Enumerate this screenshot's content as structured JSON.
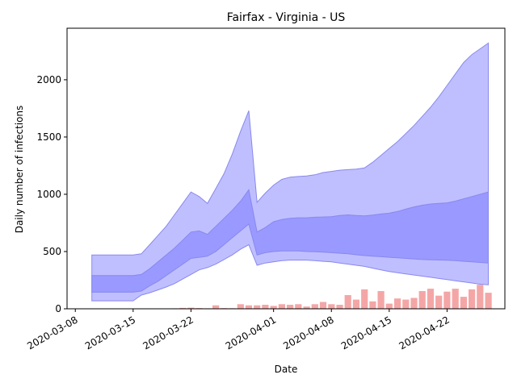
{
  "chart_data": {
    "type": "area",
    "title": "Fairfax - Virginia - US",
    "xlabel": "Date",
    "ylabel": "Daily number of infections",
    "x_type": "date",
    "xlim": [
      "2020-03-07",
      "2020-04-29"
    ],
    "ylim": [
      0,
      2450
    ],
    "x_ticks": [
      "2020-03-08",
      "2020-03-15",
      "2020-03-22",
      "2020-04-01",
      "2020-04-08",
      "2020-04-15",
      "2020-04-22"
    ],
    "y_ticks": [
      0,
      500,
      1000,
      1500,
      2000
    ],
    "grid": false,
    "legend": "none",
    "colors": {
      "outer_band": "#bfbfff",
      "inner_band": "#9999ff",
      "band_edge": "#8888ee",
      "bars": "#f4a6a6"
    },
    "bands": {
      "dates": [
        "2020-03-10",
        "2020-03-15",
        "2020-03-16",
        "2020-03-17",
        "2020-03-18",
        "2020-03-19",
        "2020-03-20",
        "2020-03-21",
        "2020-03-22",
        "2020-03-23",
        "2020-03-24",
        "2020-03-25",
        "2020-03-26",
        "2020-03-27",
        "2020-03-28",
        "2020-03-29",
        "2020-03-30",
        "2020-03-31",
        "2020-04-01",
        "2020-04-02",
        "2020-04-03",
        "2020-04-04",
        "2020-04-05",
        "2020-04-06",
        "2020-04-07",
        "2020-04-08",
        "2020-04-09",
        "2020-04-10",
        "2020-04-11",
        "2020-04-12",
        "2020-04-13",
        "2020-04-14",
        "2020-04-15",
        "2020-04-16",
        "2020-04-17",
        "2020-04-18",
        "2020-04-19",
        "2020-04-20",
        "2020-04-21",
        "2020-04-22",
        "2020-04-23",
        "2020-04-24",
        "2020-04-25",
        "2020-04-26",
        "2020-04-27"
      ],
      "outer_upper": [
        470,
        470,
        480,
        560,
        640,
        720,
        820,
        920,
        1020,
        980,
        920,
        1050,
        1180,
        1350,
        1550,
        1730,
        930,
        1010,
        1080,
        1130,
        1150,
        1155,
        1160,
        1170,
        1190,
        1200,
        1210,
        1215,
        1220,
        1230,
        1280,
        1340,
        1400,
        1460,
        1530,
        1600,
        1680,
        1760,
        1850,
        1950,
        2050,
        2150,
        2220,
        2270,
        2320
      ],
      "inner_upper": [
        290,
        290,
        300,
        350,
        410,
        470,
        530,
        600,
        670,
        680,
        650,
        720,
        790,
        860,
        940,
        1040,
        670,
        710,
        760,
        780,
        790,
        795,
        795,
        800,
        802,
        805,
        815,
        820,
        815,
        812,
        818,
        828,
        835,
        850,
        870,
        890,
        905,
        915,
        920,
        925,
        940,
        960,
        980,
        1000,
        1020
      ],
      "inner_lower": [
        145,
        145,
        155,
        200,
        240,
        290,
        340,
        390,
        440,
        450,
        460,
        500,
        560,
        620,
        680,
        740,
        470,
        490,
        500,
        505,
        505,
        505,
        500,
        498,
        495,
        490,
        485,
        480,
        472,
        465,
        460,
        455,
        450,
        445,
        440,
        435,
        430,
        428,
        426,
        424,
        420,
        415,
        410,
        405,
        400
      ],
      "outer_lower": [
        70,
        70,
        120,
        140,
        165,
        190,
        220,
        260,
        300,
        340,
        360,
        390,
        430,
        470,
        520,
        560,
        380,
        400,
        410,
        420,
        425,
        425,
        425,
        420,
        415,
        410,
        400,
        390,
        380,
        370,
        355,
        340,
        325,
        315,
        305,
        295,
        285,
        275,
        265,
        255,
        245,
        235,
        225,
        215,
        210
      ]
    },
    "observed": {
      "dates": [
        "2020-03-19",
        "2020-03-20",
        "2020-03-21",
        "2020-03-22",
        "2020-03-23",
        "2020-03-24",
        "2020-03-25",
        "2020-03-26",
        "2020-03-27",
        "2020-03-28",
        "2020-03-29",
        "2020-03-30",
        "2020-03-31",
        "2020-04-01",
        "2020-04-02",
        "2020-04-03",
        "2020-04-04",
        "2020-04-05",
        "2020-04-06",
        "2020-04-07",
        "2020-04-08",
        "2020-04-09",
        "2020-04-10",
        "2020-04-11",
        "2020-04-12",
        "2020-04-13",
        "2020-04-14",
        "2020-04-15",
        "2020-04-16",
        "2020-04-17",
        "2020-04-18",
        "2020-04-19",
        "2020-04-20",
        "2020-04-21",
        "2020-04-22",
        "2020-04-23",
        "2020-04-24",
        "2020-04-25",
        "2020-04-26",
        "2020-04-27"
      ],
      "values": [
        3,
        4,
        8,
        10,
        6,
        4,
        30,
        6,
        5,
        40,
        30,
        30,
        35,
        25,
        40,
        35,
        40,
        20,
        40,
        60,
        40,
        35,
        120,
        80,
        170,
        65,
        155,
        45,
        90,
        80,
        95,
        155,
        175,
        115,
        150,
        175,
        105,
        170,
        210,
        140
      ]
    }
  }
}
